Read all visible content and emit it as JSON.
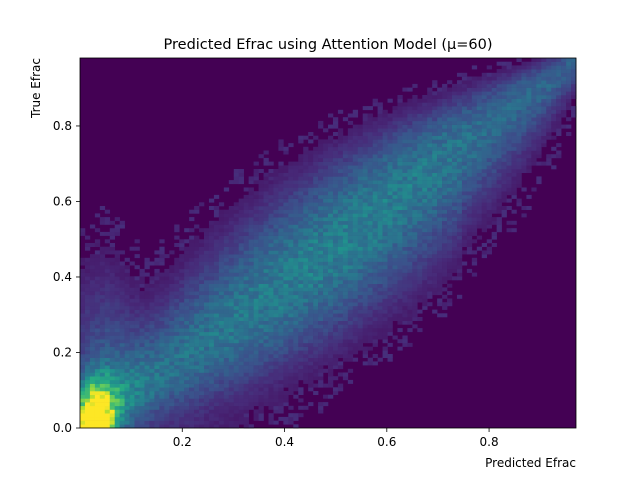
{
  "chart_data": {
    "type": "heatmap",
    "title": "Predicted Efrac using Attention Model (μ=60)",
    "xlabel": "Predicted Efrac",
    "ylabel": "True Efrac",
    "xlim": [
      0.0,
      0.97
    ],
    "ylim": [
      0.0,
      0.98
    ],
    "xticks": [
      0.2,
      0.4,
      0.6,
      0.8
    ],
    "xtick_labels": [
      "0.2",
      "0.4",
      "0.6",
      "0.8"
    ],
    "yticks": [
      0.0,
      0.2,
      0.4,
      0.6,
      0.8
    ],
    "ytick_labels": [
      "0.0",
      "0.2",
      "0.4",
      "0.6",
      "0.8"
    ],
    "colormap": "viridis",
    "grid": false,
    "legend": "none",
    "background_color": "#440154",
    "bins": [
      100,
      100
    ],
    "density_description": "counts concentrated along the diagonal y = x; maximum density (yellow) near x = 0.03, y = 0.01; broad spread at mid values; tight band near (0.95, 0.97)"
  }
}
